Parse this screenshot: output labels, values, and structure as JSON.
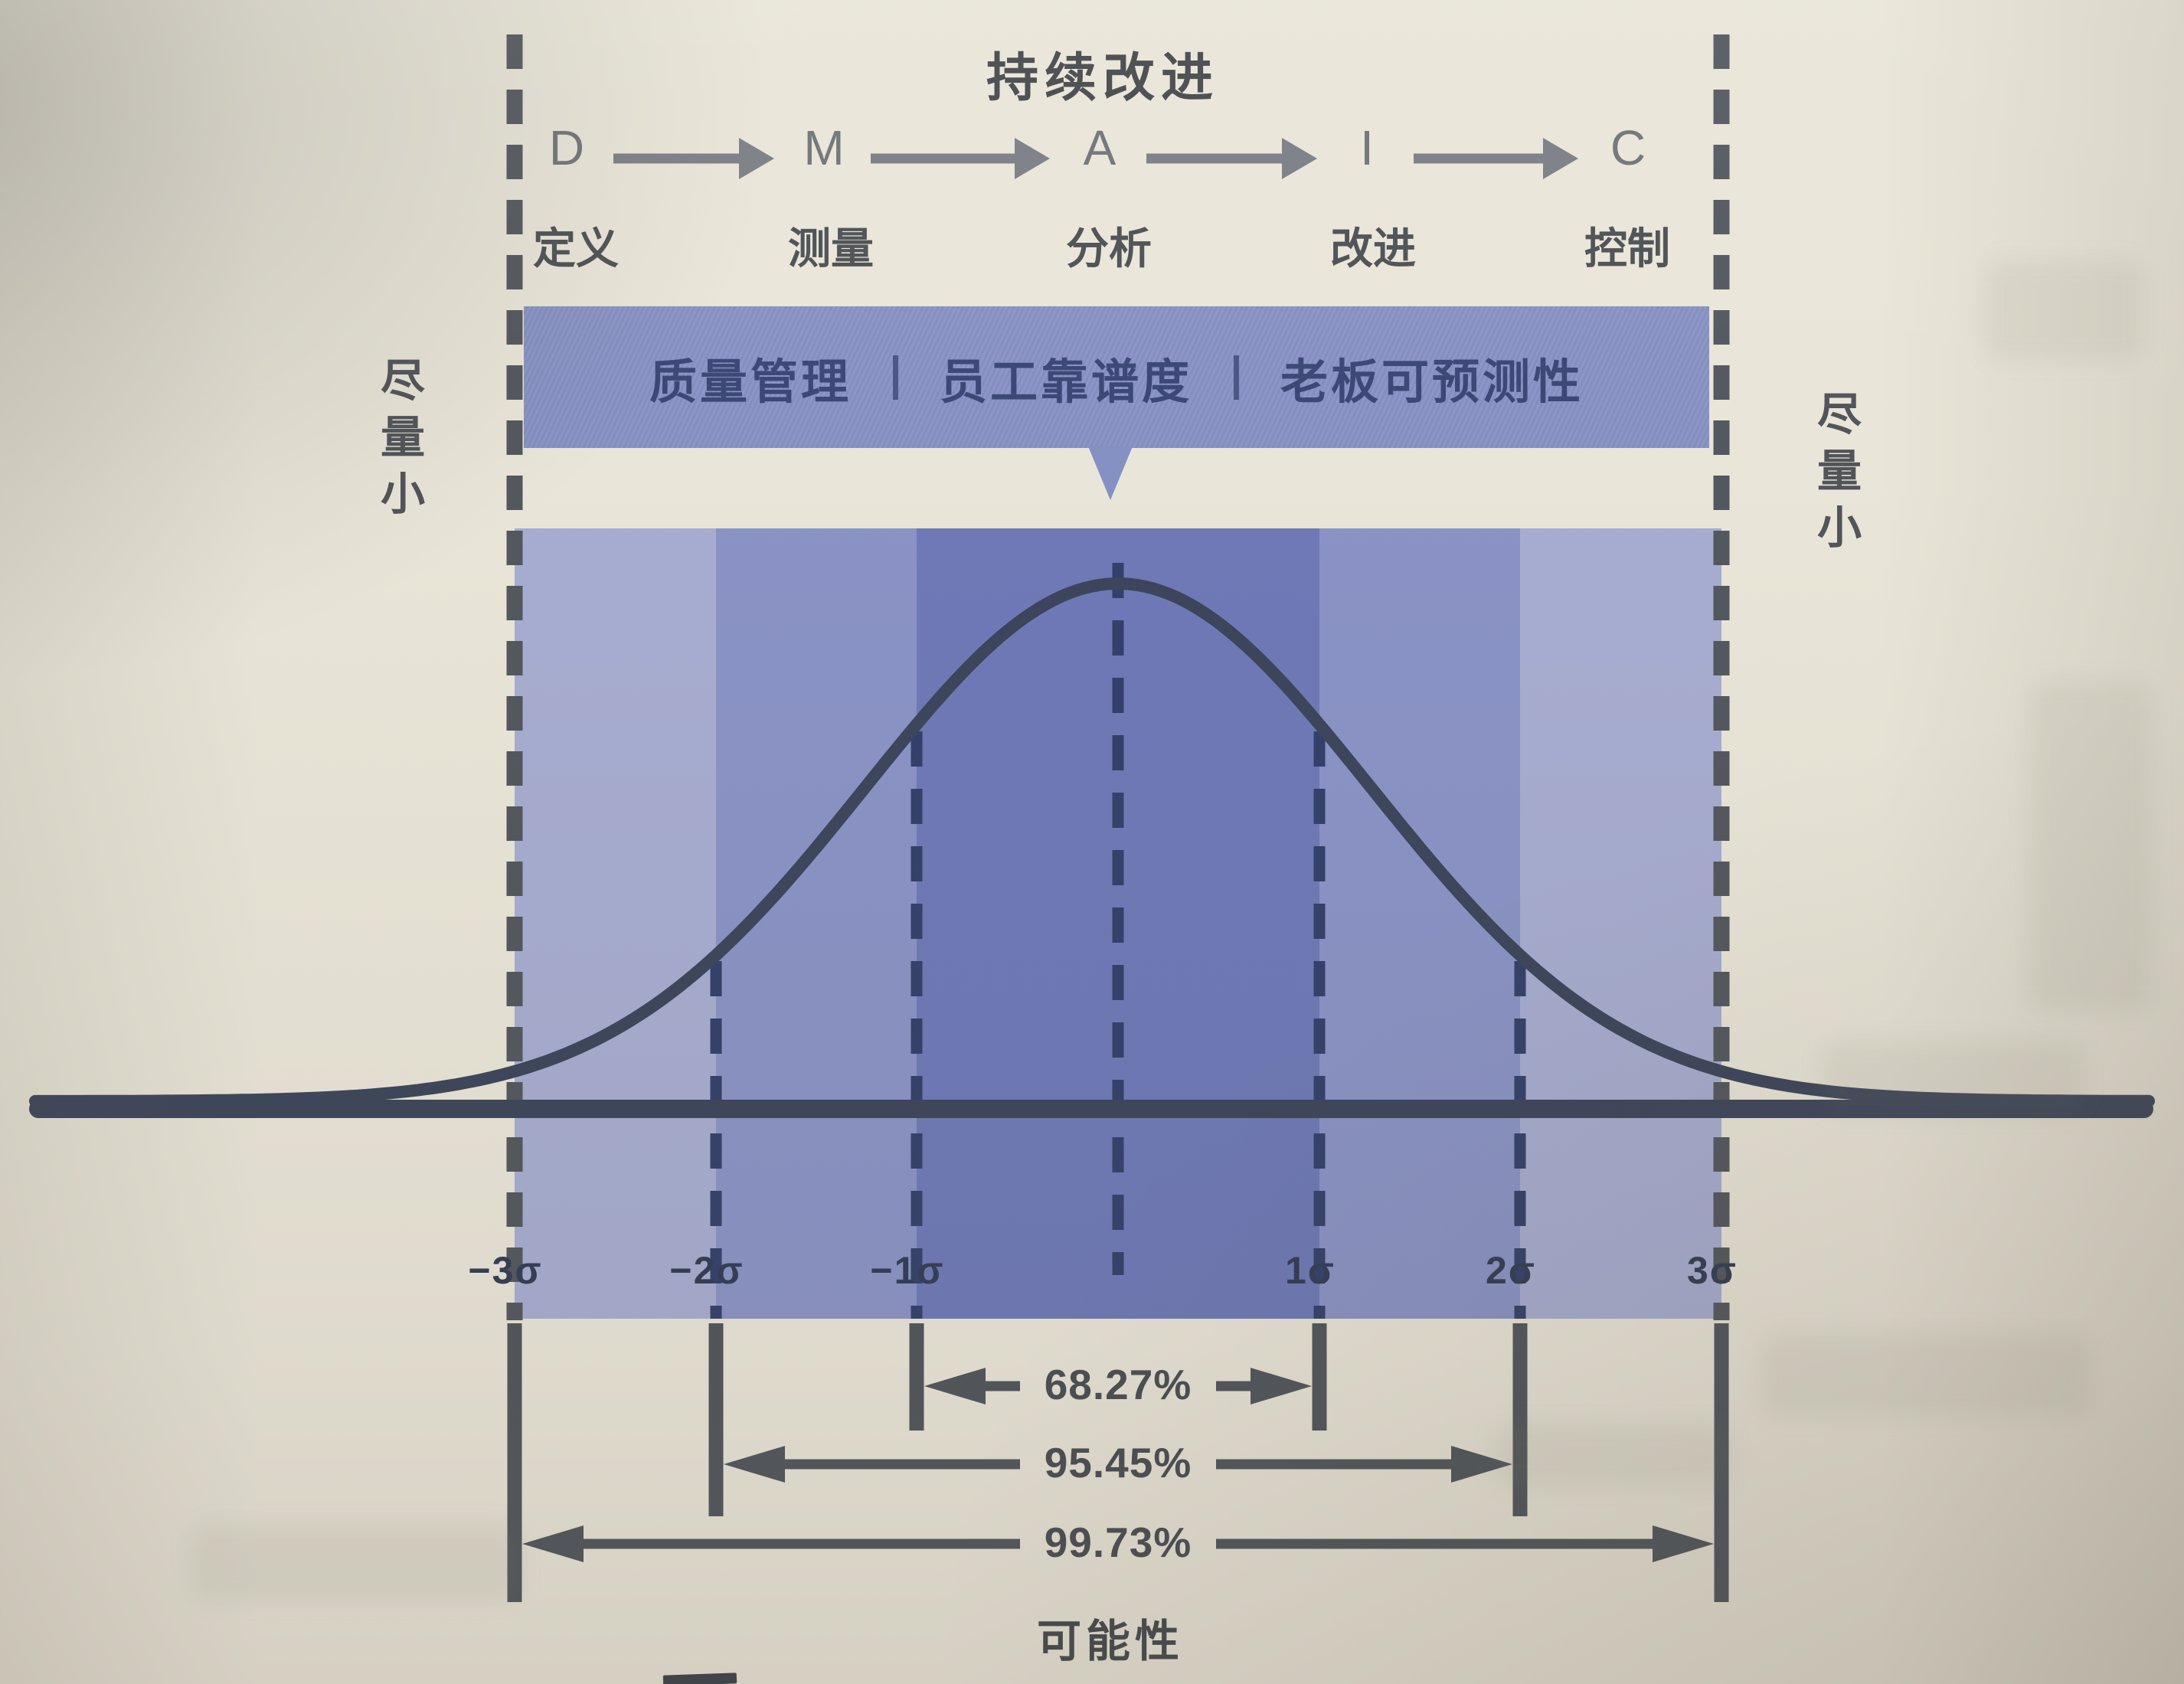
{
  "figure": {
    "title": "持续改进",
    "dmaic": {
      "letters": [
        "D",
        "M",
        "A",
        "I",
        "C"
      ],
      "stage_labels": [
        "定义",
        "测量",
        "分析",
        "改进",
        "控制"
      ]
    },
    "banner": {
      "segments": [
        "质量管理",
        "员工靠谱度",
        "老板可预测性"
      ],
      "separator": "|"
    },
    "side_label_left": "尽量小",
    "side_label_right": "尽量小",
    "sigma_ticks": [
      "−3σ",
      "−2σ",
      "−1σ",
      "1σ",
      "2σ",
      "3σ"
    ],
    "coverage_rows": [
      {
        "percent": "68.27%",
        "sigma_span": 1
      },
      {
        "percent": "95.45%",
        "sigma_span": 2
      },
      {
        "percent": "99.73%",
        "sigma_span": 3
      }
    ],
    "x_axis_caption": "可能性"
  },
  "colors": {
    "page_bg": "#e9e5d8",
    "banner": "#8590c3",
    "banner_text": "#3a4674",
    "band_light": "#a7add1",
    "band_mid": "#8a93c6",
    "band_dark": "#6e79b7",
    "curve_ink": "#3c455b",
    "dash_navy": "#33406a",
    "dash_gray": "#53575e",
    "bracket_gray": "#50555c",
    "text_dark": "#46494e"
  }
}
